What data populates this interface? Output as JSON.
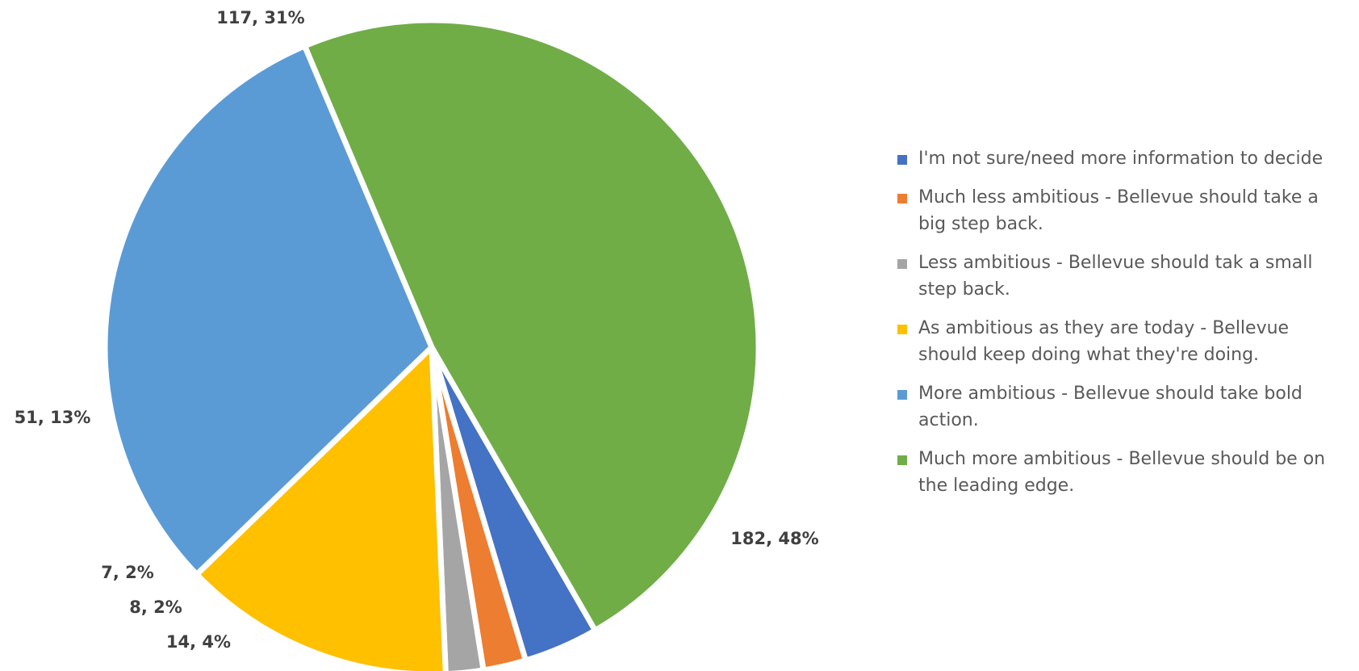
{
  "chart_data": {
    "type": "pie",
    "title": "",
    "slices": [
      {
        "name": "I'm not sure/need more information to decide",
        "value": 14,
        "percent": 4,
        "label": "14, 4%",
        "color": "#4472C4"
      },
      {
        "name": "Much less ambitious - Bellevue should take a big step back.",
        "value": 8,
        "percent": 2,
        "label": "8, 2%",
        "color": "#ED7D31"
      },
      {
        "name": "Less ambitious - Bellevue should tak a small step back.",
        "value": 7,
        "percent": 2,
        "label": "7, 2%",
        "color": "#A5A5A5"
      },
      {
        "name": "As ambitious as they are today - Bellevue should keep doing what they're doing.",
        "value": 51,
        "percent": 13,
        "label": "51, 13%",
        "color": "#FFC000"
      },
      {
        "name": "More ambitious - Bellevue should take bold action.",
        "value": 117,
        "percent": 31,
        "label": "117, 31%",
        "color": "#5B9BD5"
      },
      {
        "name": "Much more ambitious - Bellevue should be on the leading edge.",
        "value": 182,
        "percent": 48,
        "label": "182, 48%",
        "color": "#70AD47"
      }
    ],
    "legend_position": "right"
  }
}
